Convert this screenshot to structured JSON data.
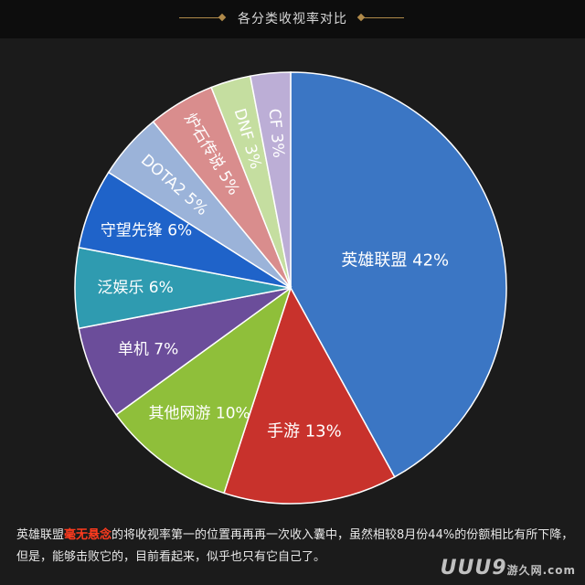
{
  "header": {
    "title": "各分类收视率对比"
  },
  "chart_data": {
    "type": "pie",
    "slices": [
      {
        "label": "英雄联盟",
        "value": 42,
        "display": "英雄联盟  42%",
        "color": "#3b76c4"
      },
      {
        "label": "手游",
        "value": 13,
        "display": "手游  13%",
        "color": "#c8322c"
      },
      {
        "label": "其他网游",
        "value": 10,
        "display": "其他网游 10%",
        "color": "#8fbf3a"
      },
      {
        "label": "单机",
        "value": 7,
        "display": "单机 7%",
        "color": "#6b4d9a"
      },
      {
        "label": "泛娱乐",
        "value": 6,
        "display": "泛娱乐 6%",
        "color": "#2f9bb0"
      },
      {
        "label": "守望先锋",
        "value": 6,
        "display": "守望先锋 6%",
        "color": "#1f63c9"
      },
      {
        "label": "DOTA2",
        "value": 5,
        "display": "DOTA2 5%",
        "color": "#9bb3d9"
      },
      {
        "label": "炉石传说",
        "value": 5,
        "display": "炉石传说 5%",
        "color": "#d98d8d"
      },
      {
        "label": "DNF",
        "value": 3,
        "display": "DNF 3%",
        "color": "#c5dea0"
      },
      {
        "label": "CF",
        "value": 3,
        "display": "CF 3%",
        "color": "#bcaed6"
      }
    ]
  },
  "caption": {
    "part1": "英雄联盟",
    "highlight": "毫无悬念",
    "part2": "的将收视率第一的位置再再再一次收入囊中，虽然相较8月份44%的份额相比有所下降，但是，能够击败它的，目前看起来，似乎也只有它自己了。"
  },
  "watermark": {
    "brand": "UUU9",
    "sub": "游久网",
    "domain": ".com"
  }
}
